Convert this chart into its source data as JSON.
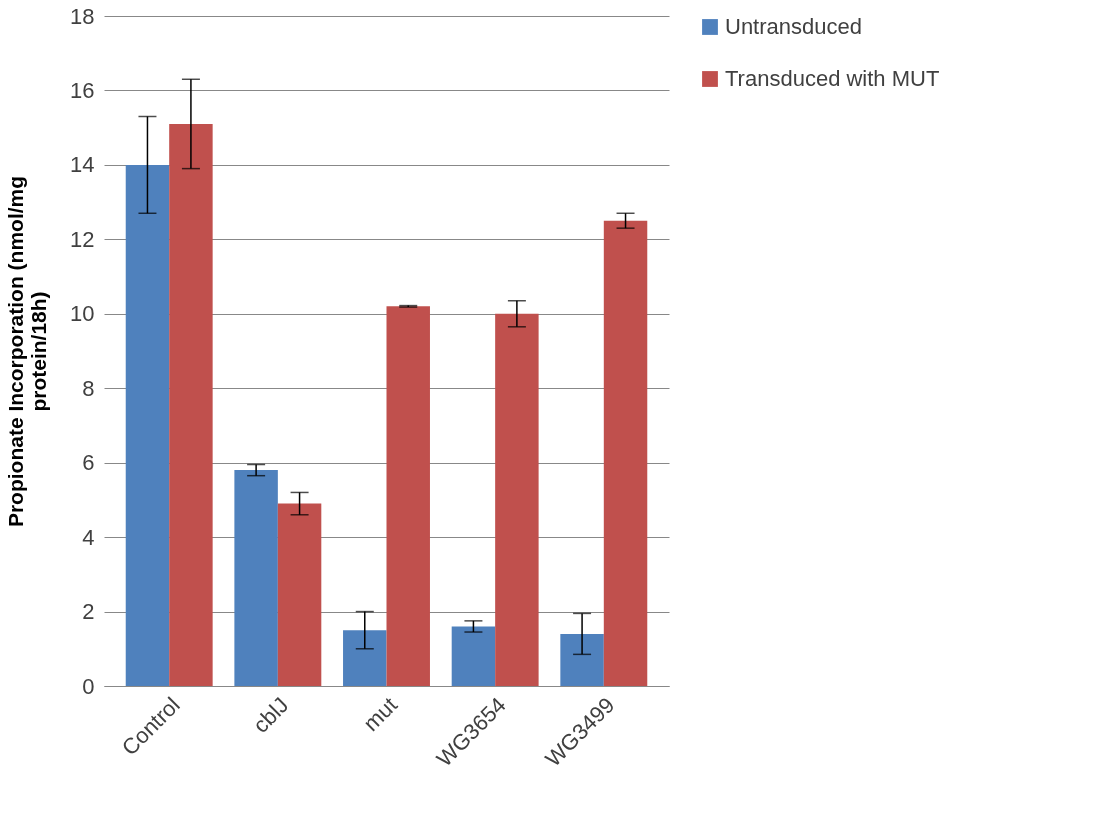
{
  "chart_data": {
    "type": "bar",
    "ylabel": "Propionate Incorporation (nmol/mg\nprotein/18h)",
    "categories": [
      "Control",
      "cblJ",
      "mut",
      "WG3654",
      "WG3499"
    ],
    "series": [
      {
        "name": "Untransduced",
        "color": "#4f81bd",
        "values": [
          14.0,
          5.8,
          1.5,
          1.6,
          1.4
        ],
        "errors": [
          1.3,
          0.15,
          0.5,
          0.15,
          0.55
        ]
      },
      {
        "name": "Transduced with MUT",
        "color": "#c0504d",
        "values": [
          15.1,
          4.9,
          10.2,
          10.0,
          12.5
        ],
        "errors": [
          1.2,
          0.3,
          0.02,
          0.35,
          0.2
        ]
      }
    ],
    "ylim": [
      0,
      18
    ],
    "yticks": [
      0,
      2,
      4,
      6,
      8,
      10,
      12,
      14,
      16,
      18
    ],
    "grid": "y",
    "legend": "right"
  }
}
